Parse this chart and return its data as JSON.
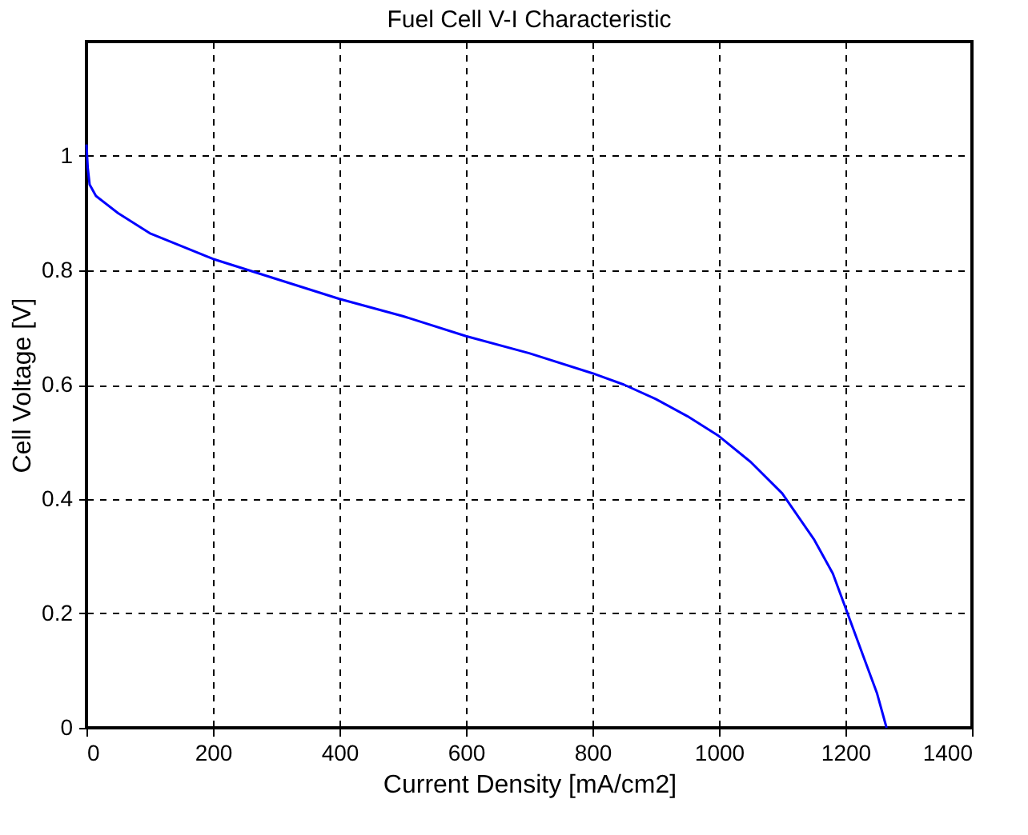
{
  "chart_data": {
    "type": "line",
    "title": "Fuel Cell V-I Characteristic",
    "xlabel": "Current Density [mA/cm2]",
    "ylabel": "Cell Voltage [V]",
    "x": [
      0,
      2,
      5,
      15,
      50,
      100,
      200,
      300,
      400,
      500,
      600,
      700,
      800,
      850,
      900,
      950,
      1000,
      1050,
      1100,
      1150,
      1180,
      1200,
      1230,
      1250,
      1265
    ],
    "series": [
      {
        "color": "#0000ff",
        "values": [
          1.02,
          0.98,
          0.95,
          0.93,
          0.9,
          0.865,
          0.82,
          0.785,
          0.75,
          0.72,
          0.685,
          0.655,
          0.62,
          0.6,
          0.575,
          0.545,
          0.51,
          0.465,
          0.41,
          0.33,
          0.27,
          0.21,
          0.12,
          0.06,
          0
        ]
      }
    ],
    "xlim": [
      0,
      1400
    ],
    "xticks": [
      0,
      200,
      400,
      600,
      800,
      1000,
      1200,
      1400
    ],
    "ylim": [
      0,
      1.2
    ],
    "yticks": [
      0,
      0.2,
      0.4,
      0.6,
      0.8,
      1
    ],
    "grid": true,
    "marker": "none",
    "line_style": "solid"
  }
}
